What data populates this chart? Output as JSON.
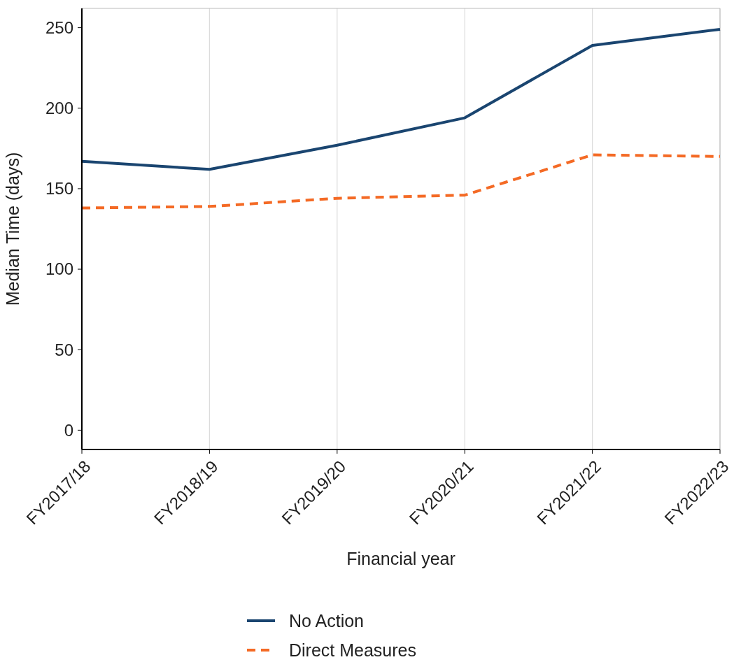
{
  "chart_data": {
    "type": "line",
    "xlabel": "Financial year",
    "ylabel": "Median Time (days)",
    "categories": [
      "FY2017/18",
      "FY2018/19",
      "FY2019/20",
      "FY2020/21",
      "FY2021/22",
      "FY2022/23"
    ],
    "series": [
      {
        "name": "No Action",
        "color": "#1a4570",
        "values": [
          167,
          162,
          177,
          194,
          239,
          249
        ],
        "line_style": "solid"
      },
      {
        "name": "Direct Measures",
        "color": "#f46a25",
        "values": [
          138,
          139,
          144,
          146,
          171,
          170
        ],
        "line_style": "dashed"
      }
    ],
    "ylim": [
      -12,
      262
    ],
    "yticks": [
      0,
      50,
      100,
      150,
      200,
      250
    ],
    "grid": "x",
    "legend": "bottom",
    "marker": "none"
  }
}
